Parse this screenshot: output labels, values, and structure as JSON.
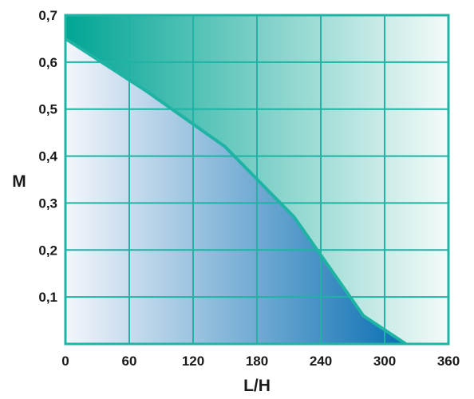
{
  "chart_data": {
    "type": "area",
    "title": "",
    "xlabel": "L/H",
    "ylabel": "M",
    "x_ticks": [
      "0",
      "60",
      "120",
      "180",
      "240",
      "300",
      "360"
    ],
    "y_ticks": [
      "0,1",
      "0,2",
      "0,3",
      "0,4",
      "0,5",
      "0,6",
      "0,7"
    ],
    "xlim": [
      0,
      360
    ],
    "ylim": [
      0,
      0.7
    ],
    "grid": true,
    "series": [
      {
        "points": [
          {
            "x": 0,
            "y": 0.65
          },
          {
            "x": 75,
            "y": 0.54
          },
          {
            "x": 150,
            "y": 0.42
          },
          {
            "x": 215,
            "y": 0.27
          },
          {
            "x": 280,
            "y": 0.06
          },
          {
            "x": 320,
            "y": 0.0
          }
        ]
      }
    ],
    "colors": {
      "frame": "#1fb3a4",
      "area_light": "#f4f6fb",
      "area_dark": "#0a6fb3",
      "upper_dark": "#00a594",
      "upper_light": "#f4faf9",
      "curve": "#1fb3a4"
    }
  }
}
